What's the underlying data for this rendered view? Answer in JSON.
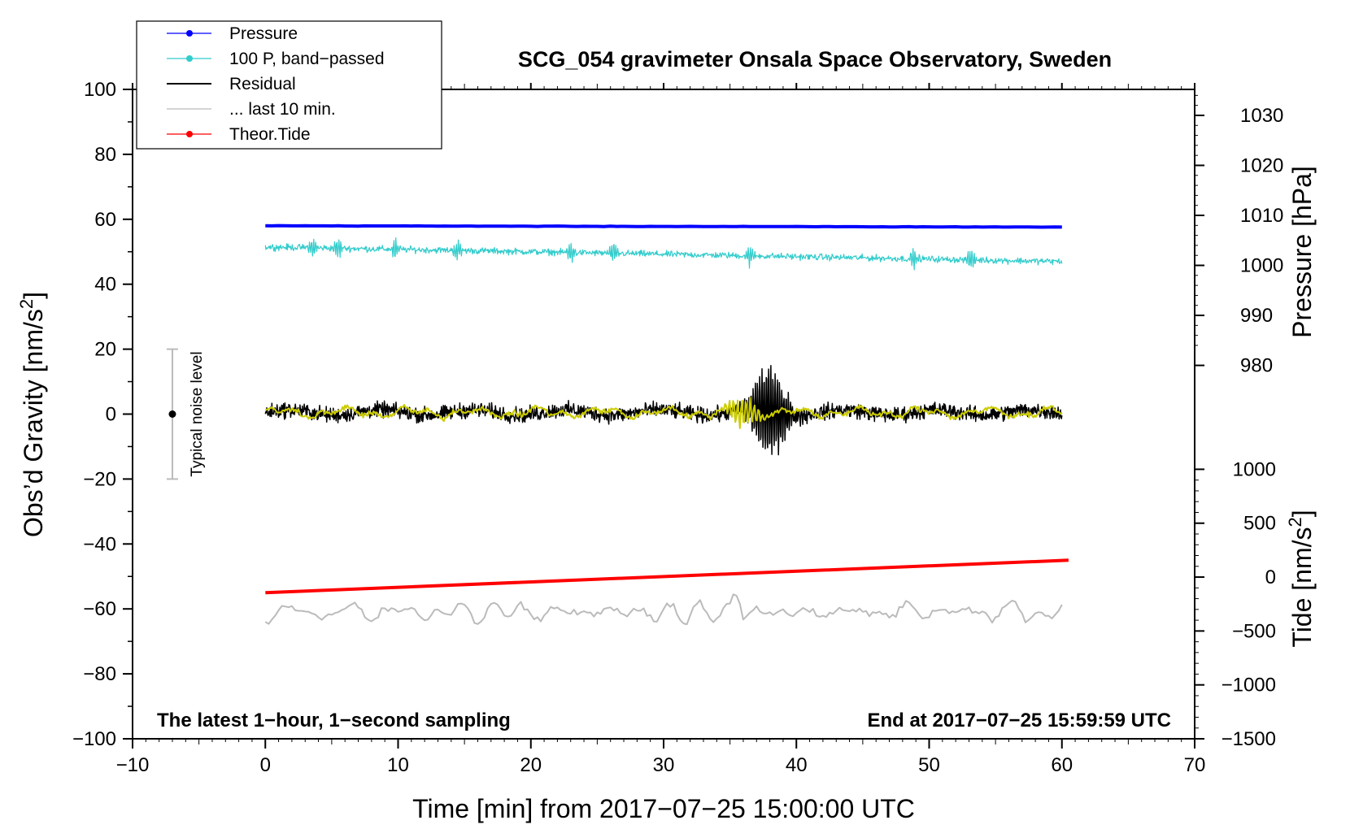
{
  "chart_data": {
    "type": "line",
    "title": "SCG_054 gravimeter Onsala Space Observatory, Sweden",
    "xlabel": "Time [min] from 2017−07−25 15:00:00 UTC",
    "ylabel_left": "Obs’d Gravity [nm/s",
    "ylabel_left_sup": "2",
    "ylabel_left_end": "]",
    "ylabel_right_pressure": "Pressure [hPa]",
    "ylabel_right_tide": "Tide [nm/s",
    "ylabel_right_tide_sup": "2",
    "ylabel_right_tide_end": "]",
    "xlim": [
      -10,
      70
    ],
    "ylim_left": [
      -100,
      100
    ],
    "x_ticks": [
      -10,
      0,
      10,
      20,
      30,
      40,
      50,
      60,
      70
    ],
    "x_tick_labels": [
      "−10",
      "0",
      "10",
      "20",
      "30",
      "40",
      "50",
      "60",
      "70"
    ],
    "y_left_ticks": [
      100,
      80,
      60,
      40,
      20,
      0,
      -20,
      -40,
      -60,
      -80,
      -100
    ],
    "y_left_tick_labels": [
      "100",
      "80",
      "60",
      "40",
      "20",
      "0",
      "−20",
      "−40",
      "−60",
      "−80",
      "−100"
    ],
    "pressure_axis": {
      "ticks": [
        1030,
        1020,
        1010,
        1000,
        990,
        980
      ],
      "tick_labels": [
        "1030",
        "1020",
        "1010",
        "1000",
        "990",
        "980"
      ],
      "maps_to_left": [
        [
          1030,
          92
        ],
        [
          980,
          15
        ]
      ]
    },
    "tide_axis": {
      "ticks": [
        1000,
        500,
        0,
        -500,
        -1000,
        -1500
      ],
      "tick_labels": [
        "1000",
        "500",
        "0",
        "−500",
        "−1000",
        "−1500"
      ],
      "maps_to_left": [
        [
          1000,
          -17
        ],
        [
          -1500,
          -100
        ]
      ]
    },
    "series": [
      {
        "name": "Pressure",
        "color": "#0000ff",
        "x_range": [
          0,
          60
        ],
        "start_value": 58.0,
        "end_value": 57.6,
        "width": 4
      },
      {
        "name": "100 P, band−passed",
        "color": "#33cccc",
        "x_range": [
          0,
          60
        ],
        "start_value": 51.5,
        "end_value": 47.0,
        "noise_amplitude": 1.2,
        "width": 1.2
      },
      {
        "name": "Residual",
        "color": "#000000",
        "x_range": [
          0,
          60
        ],
        "center_value": 0.5,
        "noise_amplitude": 2.0,
        "burst_center": 38,
        "burst_amplitude": 13,
        "width": 1.5
      },
      {
        "name": "... last 10 min.",
        "color": "#bbbbbb",
        "x_range": [
          0,
          60
        ],
        "center_value": -61,
        "noise_amplitude": 2.6,
        "width": 2
      },
      {
        "name": "Theor.Tide",
        "color": "#ff0000",
        "x_range": [
          0,
          60.5
        ],
        "start_value": -55,
        "end_value": -45,
        "width": 4
      },
      {
        "name": "filtered residual",
        "color": "#cccc00",
        "x_range": [
          0,
          60
        ],
        "center_value": 0.5,
        "noise_amplitude": 0.7,
        "width": 2
      }
    ],
    "legend": {
      "position": "top-left",
      "entries": [
        {
          "label": "Pressure",
          "color": "#0000ff",
          "marker": true
        },
        {
          "label": "100 P, band−passed",
          "color": "#33cccc",
          "marker": true
        },
        {
          "label": "Residual",
          "color": "#000000",
          "marker": false
        },
        {
          "label": "... last 10 min.",
          "color": "#bbbbbb",
          "marker": false
        },
        {
          "label": "Theor.Tide",
          "color": "#ff0000",
          "marker": true
        }
      ]
    },
    "noise_bar": {
      "label": "Typical noise level",
      "x": -7,
      "center": 0,
      "low": -20,
      "high": 20,
      "color": "#bbbbbb"
    },
    "note_left": "The latest 1−hour, 1−second sampling",
    "note_right": "End at 2017−07−25 15:59:59 UTC"
  }
}
